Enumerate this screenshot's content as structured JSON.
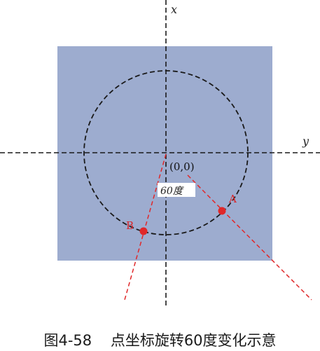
{
  "axes": {
    "x_label": "x",
    "y_label": "y"
  },
  "origin_label": "(0,0)",
  "points": {
    "a": {
      "label": "A"
    },
    "b": {
      "label": "B"
    }
  },
  "rotation_angle_label": "60度",
  "caption": "图4-58    点坐标旋转60度变化示意",
  "colors": {
    "square_fill": "#9daccf",
    "axis_line": "#1a1a1a",
    "circle_line": "#1a1a1a",
    "ray_line": "#e0282a",
    "point_fill": "#e0282a",
    "point_label": "#d8262a",
    "angle_label_background": "#ffffff"
  }
}
